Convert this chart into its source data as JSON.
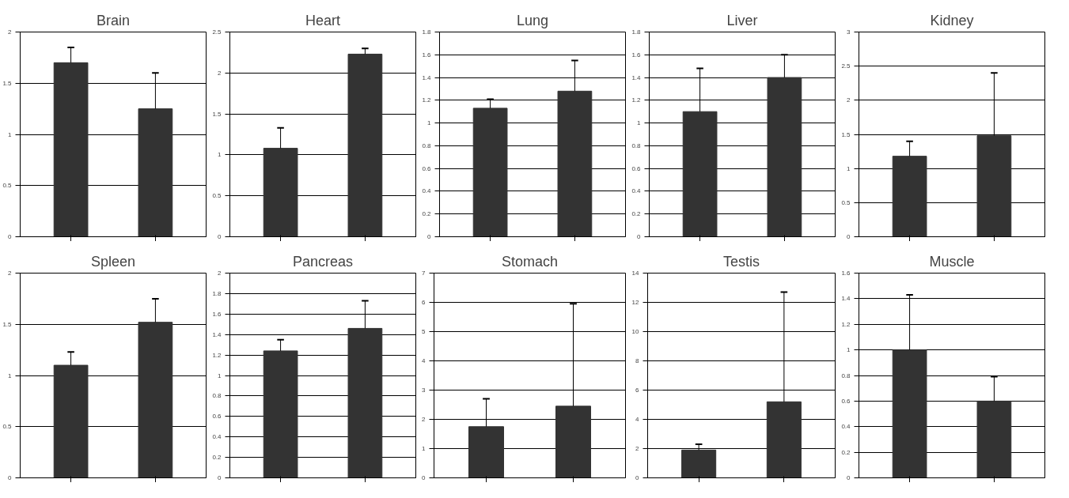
{
  "chart_data": [
    {
      "type": "bar",
      "title": "Brain",
      "categories": [
        null,
        null
      ],
      "values": [
        1.7,
        1.25
      ],
      "errors": [
        [
          1.7,
          1.85
        ],
        [
          1.25,
          1.6
        ]
      ],
      "color": "#333333",
      "ylim": [
        0,
        2
      ],
      "yticks": [
        0,
        0.5,
        1,
        1.5,
        2
      ],
      "grid": "y"
    },
    {
      "type": "bar",
      "title": "Heart",
      "categories": [
        null,
        null
      ],
      "values": [
        1.08,
        2.23
      ],
      "errors": [
        [
          1.08,
          1.33
        ],
        [
          2.23,
          2.3
        ]
      ],
      "color": "#333333",
      "ylim": [
        0,
        2.5
      ],
      "yticks": [
        0,
        0.5,
        1,
        1.5,
        2,
        2.5
      ],
      "grid": "y"
    },
    {
      "type": "bar",
      "title": "Lung",
      "categories": [
        null,
        null
      ],
      "values": [
        1.13,
        1.28
      ],
      "errors": [
        [
          1.13,
          1.21
        ],
        [
          1.28,
          1.55
        ]
      ],
      "color": "#333333",
      "ylim": [
        0,
        1.8
      ],
      "yticks": [
        0,
        0.2,
        0.4,
        0.6,
        0.8,
        1,
        1.2,
        1.4,
        1.6,
        1.8
      ],
      "grid": "y"
    },
    {
      "type": "bar",
      "title": "Liver",
      "categories": [
        null,
        null
      ],
      "values": [
        1.1,
        1.4
      ],
      "errors": [
        [
          1.1,
          1.48
        ],
        [
          1.4,
          1.6
        ]
      ],
      "color": "#333333",
      "ylim": [
        0,
        1.8
      ],
      "yticks": [
        0,
        0.2,
        0.4,
        0.6,
        0.8,
        1,
        1.2,
        1.4,
        1.6,
        1.8
      ],
      "grid": "y"
    },
    {
      "type": "bar",
      "title": "Kidney",
      "categories": [
        null,
        null
      ],
      "values": [
        1.18,
        1.48
      ],
      "errors": [
        [
          1.18,
          1.4
        ],
        [
          1.48,
          2.4
        ]
      ],
      "color": "#333333",
      "ylim": [
        0,
        3
      ],
      "yticks": [
        0,
        0.5,
        1,
        1.5,
        2,
        2.5,
        3
      ],
      "grid": "y"
    },
    {
      "type": "bar",
      "title": "Spleen",
      "categories": [
        null,
        null
      ],
      "values": [
        1.1,
        1.52
      ],
      "errors": [
        [
          1.1,
          1.23
        ],
        [
          1.52,
          1.75
        ]
      ],
      "color": "#333333",
      "ylim": [
        0,
        2
      ],
      "yticks": [
        0,
        0.5,
        1,
        1.5,
        2
      ],
      "grid": "y"
    },
    {
      "type": "bar",
      "title": "Pancreas",
      "categories": [
        null,
        null
      ],
      "values": [
        1.24,
        1.46
      ],
      "errors": [
        [
          1.24,
          1.35
        ],
        [
          1.46,
          1.73
        ]
      ],
      "color": "#333333",
      "ylim": [
        0,
        2
      ],
      "yticks": [
        0,
        0.2,
        0.4,
        0.6,
        0.8,
        1,
        1.2,
        1.4,
        1.6,
        1.8,
        2
      ],
      "grid": "y"
    },
    {
      "type": "bar",
      "title": "Stomach",
      "categories": [
        null,
        null
      ],
      "values": [
        1.75,
        2.45
      ],
      "errors": [
        [
          1.75,
          2.7
        ],
        [
          2.45,
          5.95
        ]
      ],
      "color": "#333333",
      "ylim": [
        0,
        7
      ],
      "yticks": [
        0,
        1,
        2,
        3,
        4,
        5,
        6,
        7
      ],
      "grid": "y"
    },
    {
      "type": "bar",
      "title": "Testis",
      "categories": [
        null,
        null
      ],
      "values": [
        1.9,
        5.2
      ],
      "errors": [
        [
          1.9,
          2.3
        ],
        [
          5.2,
          12.7
        ]
      ],
      "color": "#333333",
      "ylim": [
        0,
        14
      ],
      "yticks": [
        0,
        2,
        4,
        6,
        8,
        10,
        12,
        14
      ],
      "grid": "y"
    },
    {
      "type": "bar",
      "title": "Muscle",
      "categories": [
        null,
        null
      ],
      "values": [
        1.0,
        0.6
      ],
      "errors": [
        [
          1.0,
          1.43
        ],
        [
          0.6,
          0.79
        ]
      ],
      "color": "#333333",
      "ylim": [
        0,
        1.6
      ],
      "yticks": [
        0,
        0.2,
        0.4,
        0.6,
        0.8,
        1,
        1.2,
        1.4,
        1.6
      ],
      "grid": "y"
    }
  ]
}
